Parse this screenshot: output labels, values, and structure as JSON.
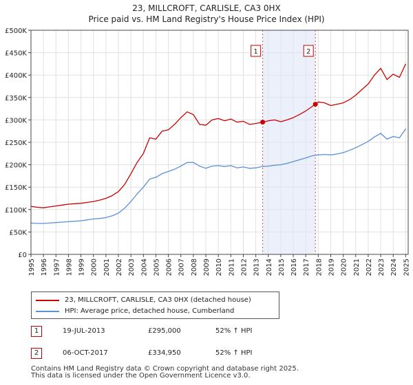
{
  "chart_data": {
    "type": "line",
    "title_line1": "23, MILLCROFT, CARLISLE, CA3 0HX",
    "title_line2": "Price paid vs. HM Land Registry's House Price Index (HPI)",
    "xlim": [
      1995,
      2025.2
    ],
    "ylim": [
      0,
      500000
    ],
    "y_ticks": [
      0,
      50000,
      100000,
      150000,
      200000,
      250000,
      300000,
      350000,
      400000,
      450000,
      500000
    ],
    "y_tick_labels": [
      "£0",
      "£50K",
      "£100K",
      "£150K",
      "£200K",
      "£250K",
      "£300K",
      "£350K",
      "£400K",
      "£450K",
      "£500K"
    ],
    "x_ticks": [
      1995,
      1996,
      1997,
      1998,
      1999,
      2000,
      2001,
      2002,
      2003,
      2004,
      2005,
      2006,
      2007,
      2008,
      2009,
      2010,
      2011,
      2012,
      2013,
      2014,
      2015,
      2016,
      2017,
      2018,
      2019,
      2020,
      2021,
      2022,
      2023,
      2024,
      2025
    ],
    "x_tick_labels": [
      "1995",
      "1996",
      "1997",
      "1998",
      "1999",
      "2000",
      "2001",
      "2002",
      "2003",
      "2004",
      "2005",
      "2006",
      "2007",
      "2008",
      "2009",
      "2010",
      "2011",
      "2012",
      "2013",
      "2014",
      "2015",
      "2016",
      "2017",
      "2018",
      "2019",
      "2020",
      "2021",
      "2022",
      "2023",
      "2024",
      "2025"
    ],
    "grid": true,
    "shaded_region": [
      2013.55,
      2017.77
    ],
    "series": [
      {
        "name": "23, MILLCROFT, CARLISLE, CA3 0HX (detached house)",
        "color": "#cc0000",
        "x": [
          1995,
          1995.5,
          1996,
          1996.5,
          1997,
          1997.5,
          1998,
          1998.5,
          1999,
          1999.5,
          2000,
          2000.5,
          2001,
          2001.5,
          2002,
          2002.5,
          2003,
          2003.5,
          2004,
          2004.5,
          2005,
          2005.5,
          2006,
          2006.5,
          2007,
          2007.5,
          2008,
          2008.5,
          2009,
          2009.5,
          2010,
          2010.5,
          2011,
          2011.5,
          2012,
          2012.5,
          2013,
          2013.55,
          2014,
          2014.5,
          2015,
          2015.5,
          2016,
          2016.5,
          2017,
          2017.77,
          2018,
          2018.5,
          2019,
          2019.5,
          2020,
          2020.5,
          2021,
          2021.5,
          2022,
          2022.5,
          2023,
          2023.5,
          2024,
          2024.5,
          2025
        ],
        "values": [
          107000,
          105000,
          104000,
          106000,
          108000,
          110000,
          112000,
          113000,
          114000,
          116000,
          118000,
          121000,
          125000,
          131000,
          140000,
          156000,
          180000,
          205000,
          225000,
          260000,
          257000,
          275000,
          278000,
          290000,
          305000,
          318000,
          312000,
          290000,
          288000,
          300000,
          303000,
          298000,
          302000,
          295000,
          297000,
          290000,
          292000,
          295000,
          298000,
          300000,
          296000,
          300000,
          305000,
          312000,
          320000,
          334950,
          340000,
          338000,
          332000,
          335000,
          338000,
          345000,
          355000,
          368000,
          380000,
          400000,
          415000,
          390000,
          402000,
          395000,
          425000
        ]
      },
      {
        "name": "HPI: Average price, detached house, Cumberland",
        "color": "#5b8fd6",
        "x": [
          1995,
          1995.5,
          1996,
          1996.5,
          1997,
          1997.5,
          1998,
          1998.5,
          1999,
          1999.5,
          2000,
          2000.5,
          2001,
          2001.5,
          2002,
          2002.5,
          2003,
          2003.5,
          2004,
          2004.5,
          2005,
          2005.5,
          2006,
          2006.5,
          2007,
          2007.5,
          2008,
          2008.5,
          2009,
          2009.5,
          2010,
          2010.5,
          2011,
          2011.5,
          2012,
          2012.5,
          2013,
          2013.5,
          2014,
          2014.5,
          2015,
          2015.5,
          2016,
          2016.5,
          2017,
          2017.5,
          2018,
          2018.5,
          2019,
          2019.5,
          2020,
          2020.5,
          2021,
          2021.5,
          2022,
          2022.5,
          2023,
          2023.5,
          2024,
          2024.5,
          2025
        ],
        "values": [
          70000,
          69000,
          69000,
          70000,
          71000,
          72000,
          73000,
          74000,
          75000,
          77000,
          79000,
          80000,
          82000,
          86000,
          92000,
          103000,
          118000,
          135000,
          150000,
          168000,
          172000,
          180000,
          185000,
          190000,
          197000,
          205000,
          205000,
          197000,
          192000,
          197000,
          198000,
          196000,
          198000,
          193000,
          195000,
          192000,
          193000,
          196000,
          197000,
          199000,
          200000,
          203000,
          207000,
          211000,
          215000,
          220000,
          222000,
          223000,
          222000,
          224000,
          227000,
          232000,
          238000,
          245000,
          252000,
          262000,
          270000,
          257000,
          263000,
          260000,
          280000
        ]
      }
    ],
    "sale_markers": [
      {
        "label": "1",
        "x": 2013.55,
        "y": 295000
      },
      {
        "label": "2",
        "x": 2017.77,
        "y": 334950
      }
    ]
  },
  "legend": {
    "items": [
      {
        "label": "23, MILLCROFT, CARLISLE, CA3 0HX (detached house)",
        "color": "#cc0000"
      },
      {
        "label": "HPI: Average price, detached house, Cumberland",
        "color": "#5b8fd6"
      }
    ]
  },
  "sales": [
    {
      "num": "1",
      "date": "19-JUL-2013",
      "price": "£295,000",
      "hpi": "52% ↑ HPI"
    },
    {
      "num": "2",
      "date": "06-OCT-2017",
      "price": "£334,950",
      "hpi": "52% ↑ HPI"
    }
  ],
  "footer": {
    "line1": "Contains HM Land Registry data © Crown copyright and database right 2025.",
    "line2": "This data is licensed under the Open Government Licence v3.0."
  }
}
